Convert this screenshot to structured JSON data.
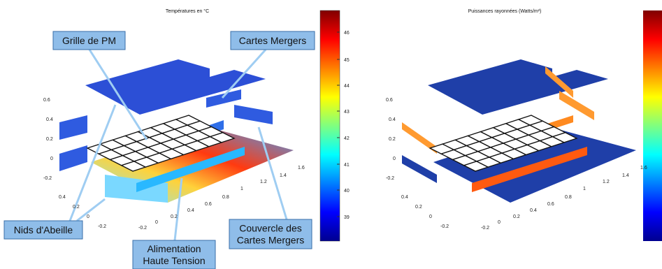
{
  "panels": [
    {
      "title": "Températures en °C",
      "colorbar_ticks": [
        46,
        45,
        44,
        43,
        42,
        41,
        40,
        39
      ],
      "z_ticks": [
        0.6,
        0.4,
        0.2,
        0,
        -0.2
      ],
      "y_ticks": [
        0.4,
        0.2,
        0,
        -0.2
      ],
      "x_ticks": [
        -0.2,
        0,
        0.2,
        0.4,
        0.6,
        0.8,
        1,
        1.2,
        1.4,
        1.6
      ]
    },
    {
      "title": "Puissances rayonnées (Watts/m²)",
      "z_ticks": [
        0.6,
        0.4,
        0.2,
        0,
        -0.2
      ],
      "y_ticks": [
        0.4,
        0.2,
        0,
        -0.2
      ],
      "x_ticks": [
        -0.2,
        0,
        0.2,
        0.4,
        0.6,
        0.8,
        1,
        1.2,
        1.4,
        1.6
      ]
    }
  ],
  "annotations": [
    {
      "lines": [
        "Grille de PM"
      ]
    },
    {
      "lines": [
        "Cartes Mergers"
      ]
    },
    {
      "lines": [
        "Nids d'Abeille"
      ]
    },
    {
      "lines": [
        "Couvercle des",
        "Cartes Mergers"
      ]
    },
    {
      "lines": [
        "Alimentation",
        "Haute Tension"
      ]
    }
  ]
}
